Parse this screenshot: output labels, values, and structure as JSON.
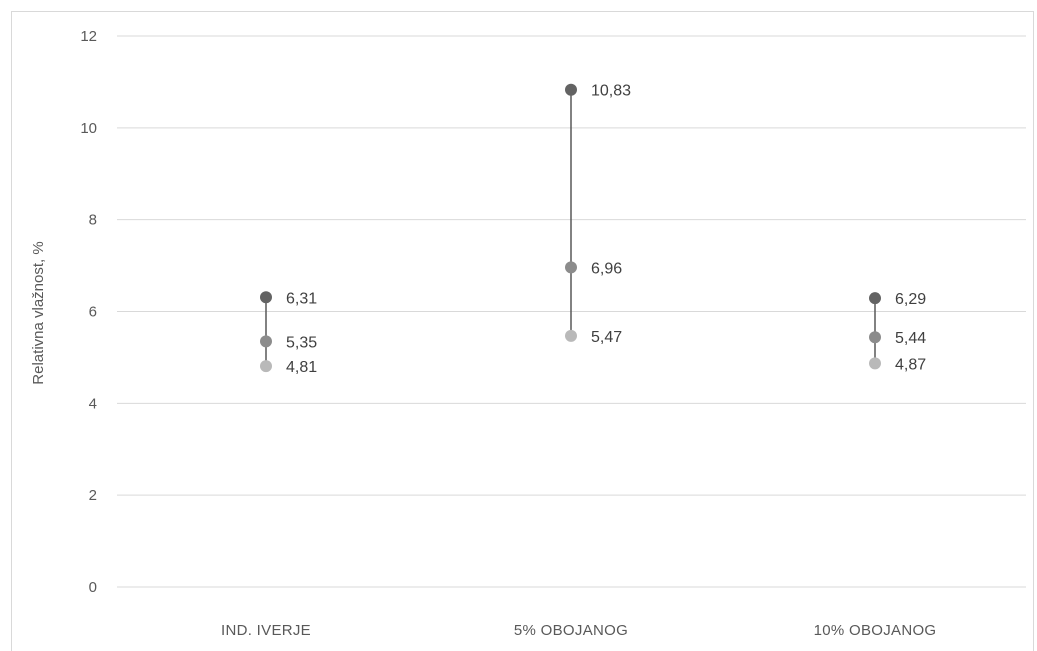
{
  "chart_data": {
    "type": "scatter",
    "title": "",
    "xlabel": "",
    "ylabel": "Relativna vlažnost, %",
    "ylim": [
      0,
      12
    ],
    "yticks": [
      "0",
      "2",
      "4",
      "6",
      "8",
      "10",
      "12"
    ],
    "grid": true,
    "legend": "none",
    "categories": [
      "IND. IVERJE",
      "5% OBOJANOG",
      "10% OBOJANOG"
    ],
    "series": [
      {
        "color": "#636363",
        "values": [
          6.31,
          10.83,
          6.29
        ],
        "labels": [
          "6,31",
          "10,83",
          "6,29"
        ]
      },
      {
        "color": "#8c8c8c",
        "values": [
          5.35,
          6.96,
          5.44
        ],
        "labels": [
          "5,35",
          "6,96",
          "5,44"
        ]
      },
      {
        "color": "#b9b9b9",
        "values": [
          4.81,
          5.47,
          4.87
        ],
        "labels": [
          "4,81",
          "5,47",
          "4,87"
        ]
      }
    ]
  }
}
